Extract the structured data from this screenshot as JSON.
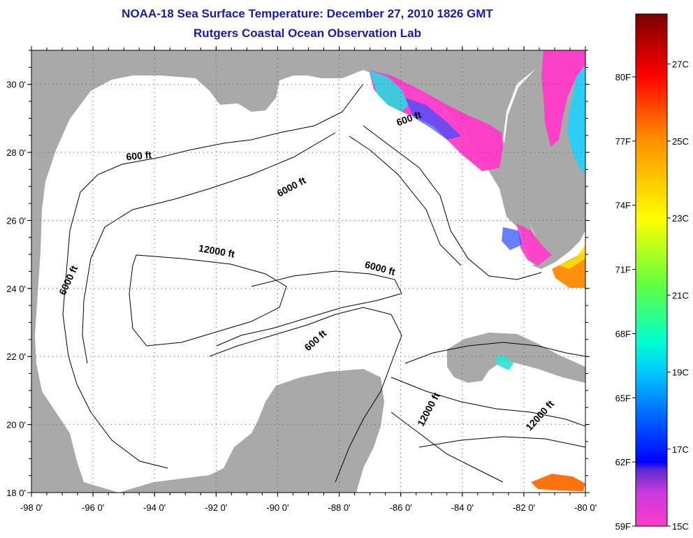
{
  "title_line1": "NOAA-18 Sea Surface Temperature:  December 27, 2010 1826 GMT",
  "title_line2": "Rutgers Coastal Ocean Observation Lab",
  "colors": {
    "land": "#a9a9a9",
    "ocean_nodata": "#ffffff",
    "title": "#1a1aa6",
    "grid": "#555555",
    "contour": "#000000"
  },
  "map": {
    "lon_range": [
      -98,
      -80
    ],
    "lat_range": [
      18,
      31
    ],
    "x_ticks": [
      "-98 0'",
      "-96 0'",
      "-94 0'",
      "-92 0'",
      "-90 0'",
      "-88 0'",
      "-86 0'",
      "-84 0'",
      "-82 0'",
      "-80 0'"
    ],
    "y_ticks": [
      "30 0'",
      "28 0'",
      "26 0'",
      "24 0'",
      "22 0'",
      "20 0'",
      "18 0'"
    ],
    "y_tick_values": [
      30,
      28,
      26,
      24,
      22,
      20,
      18
    ],
    "x_tick_values": [
      -98,
      -96,
      -94,
      -92,
      -90,
      -88,
      -86,
      -84,
      -82,
      -80
    ]
  },
  "contour_labels": [
    {
      "text": "600 ft",
      "lon": -85.7,
      "lat": 28.9,
      "angle": -20
    },
    {
      "text": "600 ft",
      "lon": -94.5,
      "lat": 27.8,
      "angle": -5
    },
    {
      "text": "6000 ft",
      "lon": -89.5,
      "lat": 26.9,
      "angle": -28
    },
    {
      "text": "6000 ft",
      "lon": -96.7,
      "lat": 24.2,
      "angle": -65
    },
    {
      "text": "12000 ft",
      "lon": -92.0,
      "lat": 25.0,
      "angle": 10
    },
    {
      "text": "6000 ft",
      "lon": -86.7,
      "lat": 24.5,
      "angle": 15
    },
    {
      "text": "600 ft",
      "lon": -88.7,
      "lat": 22.4,
      "angle": -42
    },
    {
      "text": "12000 ft",
      "lon": -85.0,
      "lat": 20.4,
      "angle": -62
    },
    {
      "text": "12000 ft",
      "lon": -81.4,
      "lat": 20.2,
      "angle": -48
    }
  ],
  "colorbar": {
    "fahrenheit": [
      "80F",
      "77F",
      "74F",
      "71F",
      "68F",
      "65F",
      "62F",
      "59F"
    ],
    "fahrenheit_values": [
      80,
      77,
      74,
      71,
      68,
      65,
      62,
      59
    ],
    "celsius": [
      "27C",
      "25C",
      "23C",
      "21C",
      "19C",
      "17C",
      "15C"
    ],
    "celsius_values": [
      27,
      25,
      23,
      21,
      19,
      17,
      15
    ],
    "range_c": [
      15,
      28.3
    ]
  }
}
